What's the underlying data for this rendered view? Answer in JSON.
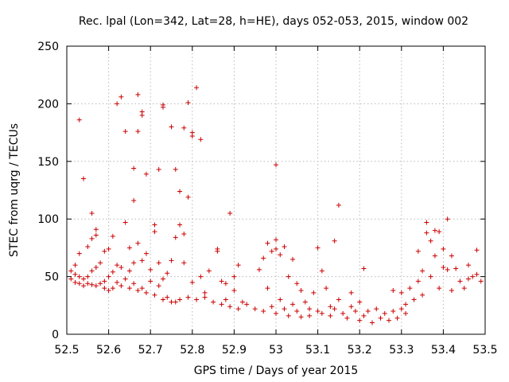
{
  "chart_data": {
    "type": "scatter",
    "title": "Rec. lpal (Lon=342, Lat=28, h=HE), days 052-053, 2015, window 002",
    "xlabel": "GPS time / Days of year 2015",
    "ylabel": "STEC from uqrg / TECUs",
    "xlim": [
      52.5,
      53.5
    ],
    "ylim": [
      0,
      250
    ],
    "xticks": [
      52.5,
      52.6,
      52.7,
      52.8,
      52.9,
      53.0,
      53.1,
      53.2,
      53.3,
      53.4,
      53.5
    ],
    "xtick_labels": [
      "52.5",
      "52.6",
      "52.7",
      "52.8",
      "52.9",
      "53",
      "53.1",
      "53.2",
      "53.3",
      "53.4",
      "53.5"
    ],
    "yticks": [
      0,
      50,
      100,
      150,
      200,
      250
    ],
    "ytick_labels": [
      "0",
      "50",
      "100",
      "150",
      "200",
      "250"
    ],
    "grid": true,
    "marker": "plus",
    "series": [
      {
        "name": "STEC",
        "color": "#cc0000",
        "points": [
          [
            52.51,
            48
          ],
          [
            52.51,
            55
          ],
          [
            52.52,
            45
          ],
          [
            52.52,
            52
          ],
          [
            52.52,
            60
          ],
          [
            52.53,
            186
          ],
          [
            52.53,
            44
          ],
          [
            52.53,
            50
          ],
          [
            52.53,
            70
          ],
          [
            52.54,
            135
          ],
          [
            52.54,
            42
          ],
          [
            52.54,
            48
          ],
          [
            52.55,
            76
          ],
          [
            52.55,
            44
          ],
          [
            52.55,
            50
          ],
          [
            52.56,
            105
          ],
          [
            52.56,
            83
          ],
          [
            52.56,
            43
          ],
          [
            52.56,
            55
          ],
          [
            52.57,
            86
          ],
          [
            52.57,
            91
          ],
          [
            52.57,
            42
          ],
          [
            52.57,
            58
          ],
          [
            52.58,
            44
          ],
          [
            52.58,
            62
          ],
          [
            52.59,
            72
          ],
          [
            52.59,
            40
          ],
          [
            52.59,
            46
          ],
          [
            52.6,
            74
          ],
          [
            52.6,
            38
          ],
          [
            52.6,
            50
          ],
          [
            52.61,
            85
          ],
          [
            52.61,
            40
          ],
          [
            52.61,
            54
          ],
          [
            52.62,
            200
          ],
          [
            52.62,
            60
          ],
          [
            52.62,
            45
          ],
          [
            52.63,
            206
          ],
          [
            52.63,
            42
          ],
          [
            52.63,
            58
          ],
          [
            52.64,
            176
          ],
          [
            52.64,
            97
          ],
          [
            52.64,
            48
          ],
          [
            52.65,
            75
          ],
          [
            52.65,
            40
          ],
          [
            52.65,
            55
          ],
          [
            52.66,
            144
          ],
          [
            52.66,
            116
          ],
          [
            52.66,
            44
          ],
          [
            52.66,
            62
          ],
          [
            52.67,
            208
          ],
          [
            52.67,
            176
          ],
          [
            52.67,
            79
          ],
          [
            52.67,
            38
          ],
          [
            52.68,
            193
          ],
          [
            52.68,
            190
          ],
          [
            52.68,
            64
          ],
          [
            52.68,
            40
          ],
          [
            52.69,
            70
          ],
          [
            52.69,
            139
          ],
          [
            52.69,
            36
          ],
          [
            52.7,
            46
          ],
          [
            52.7,
            56
          ],
          [
            52.71,
            95
          ],
          [
            52.71,
            89
          ],
          [
            52.71,
            34
          ],
          [
            52.72,
            143
          ],
          [
            52.72,
            62
          ],
          [
            52.72,
            42
          ],
          [
            52.73,
            199
          ],
          [
            52.73,
            197
          ],
          [
            52.73,
            48
          ],
          [
            52.73,
            30
          ],
          [
            52.74,
            53
          ],
          [
            52.74,
            32
          ],
          [
            52.75,
            180
          ],
          [
            52.75,
            64
          ],
          [
            52.75,
            28
          ],
          [
            52.76,
            143
          ],
          [
            52.76,
            84
          ],
          [
            52.76,
            28
          ],
          [
            52.77,
            124
          ],
          [
            52.77,
            95
          ],
          [
            52.77,
            30
          ],
          [
            52.78,
            179
          ],
          [
            52.78,
            87
          ],
          [
            52.78,
            62
          ],
          [
            52.79,
            201
          ],
          [
            52.79,
            119
          ],
          [
            52.79,
            32
          ],
          [
            52.8,
            175
          ],
          [
            52.8,
            172
          ],
          [
            52.8,
            45
          ],
          [
            52.81,
            214
          ],
          [
            52.81,
            30
          ],
          [
            52.82,
            169
          ],
          [
            52.82,
            50
          ],
          [
            52.83,
            36
          ],
          [
            52.83,
            32
          ],
          [
            52.84,
            55
          ],
          [
            52.85,
            28
          ],
          [
            52.86,
            72
          ],
          [
            52.86,
            74
          ],
          [
            52.87,
            26
          ],
          [
            52.87,
            46
          ],
          [
            52.88,
            44
          ],
          [
            52.88,
            30
          ],
          [
            52.89,
            105
          ],
          [
            52.89,
            24
          ],
          [
            52.9,
            50
          ],
          [
            52.9,
            38
          ],
          [
            52.91,
            60
          ],
          [
            52.91,
            22
          ],
          [
            52.92,
            28
          ],
          [
            52.93,
            26
          ],
          [
            52.95,
            22
          ],
          [
            52.96,
            56
          ],
          [
            52.97,
            66
          ],
          [
            52.97,
            20
          ],
          [
            52.98,
            79
          ],
          [
            52.98,
            40
          ],
          [
            52.99,
            72
          ],
          [
            52.99,
            24
          ],
          [
            53.0,
            74
          ],
          [
            53.0,
            147
          ],
          [
            53.0,
            82
          ],
          [
            53.0,
            18
          ],
          [
            53.01,
            30
          ],
          [
            53.01,
            69
          ],
          [
            53.02,
            76
          ],
          [
            53.02,
            22
          ],
          [
            53.03,
            50
          ],
          [
            53.03,
            16
          ],
          [
            53.04,
            65
          ],
          [
            53.04,
            26
          ],
          [
            53.05,
            44
          ],
          [
            53.05,
            20
          ],
          [
            53.06,
            38
          ],
          [
            53.06,
            15
          ],
          [
            53.07,
            28
          ],
          [
            53.08,
            22
          ],
          [
            53.08,
            16
          ],
          [
            53.09,
            36
          ],
          [
            53.1,
            75
          ],
          [
            53.1,
            20
          ],
          [
            53.11,
            55
          ],
          [
            53.11,
            18
          ],
          [
            53.12,
            40
          ],
          [
            53.13,
            24
          ],
          [
            53.13,
            16
          ],
          [
            53.14,
            81
          ],
          [
            53.14,
            22
          ],
          [
            53.15,
            112
          ],
          [
            53.15,
            30
          ],
          [
            53.16,
            18
          ],
          [
            53.17,
            14
          ],
          [
            53.18,
            36
          ],
          [
            53.18,
            24
          ],
          [
            53.19,
            20
          ],
          [
            53.2,
            28
          ],
          [
            53.2,
            12
          ],
          [
            53.21,
            57
          ],
          [
            53.21,
            16
          ],
          [
            53.22,
            20
          ],
          [
            53.23,
            10
          ],
          [
            53.24,
            22
          ],
          [
            53.25,
            14
          ],
          [
            53.26,
            18
          ],
          [
            53.27,
            12
          ],
          [
            53.28,
            38
          ],
          [
            53.28,
            20
          ],
          [
            53.29,
            14
          ],
          [
            53.3,
            22
          ],
          [
            53.3,
            36
          ],
          [
            53.31,
            26
          ],
          [
            53.31,
            18
          ],
          [
            53.32,
            40
          ],
          [
            53.33,
            30
          ],
          [
            53.34,
            72
          ],
          [
            53.34,
            46
          ],
          [
            53.35,
            55
          ],
          [
            53.35,
            34
          ],
          [
            53.36,
            97
          ],
          [
            53.36,
            88
          ],
          [
            53.37,
            81
          ],
          [
            53.37,
            50
          ],
          [
            53.38,
            90
          ],
          [
            53.38,
            68
          ],
          [
            53.39,
            89
          ],
          [
            53.39,
            40
          ],
          [
            53.4,
            74
          ],
          [
            53.4,
            58
          ],
          [
            53.41,
            100
          ],
          [
            53.41,
            56
          ],
          [
            53.42,
            68
          ],
          [
            53.42,
            38
          ],
          [
            53.43,
            57
          ],
          [
            53.44,
            46
          ],
          [
            53.45,
            40
          ],
          [
            53.46,
            60
          ],
          [
            53.46,
            48
          ],
          [
            53.47,
            50
          ],
          [
            53.48,
            73
          ],
          [
            53.48,
            52
          ],
          [
            53.49,
            46
          ]
        ]
      }
    ]
  }
}
